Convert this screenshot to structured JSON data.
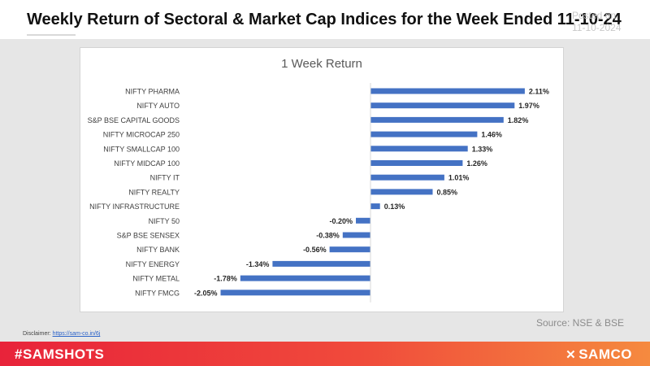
{
  "header": {
    "title": "Weekly Return of Sectoral & Market Cap Indices for the Week Ended 11-10-24",
    "posted_label": "Posted on",
    "posted_date": "11-10-2024"
  },
  "chart_data": {
    "type": "bar",
    "orientation": "horizontal",
    "title": "1 Week Return",
    "categories": [
      "NIFTY PHARMA",
      "NIFTY AUTO",
      "S&P BSE CAPITAL GOODS",
      "NIFTY MICROCAP 250",
      "NIFTY SMALLCAP 100",
      "NIFTY MIDCAP 100",
      "NIFTY IT",
      "NIFTY REALTY",
      "NIFTY INFRASTRUCTURE",
      "NIFTY 50",
      "S&P BSE SENSEX",
      "NIFTY BANK",
      "NIFTY ENERGY",
      "NIFTY METAL",
      "NIFTY FMCG"
    ],
    "values": [
      2.11,
      1.97,
      1.82,
      1.46,
      1.33,
      1.26,
      1.01,
      0.85,
      0.13,
      -0.2,
      -0.38,
      -0.56,
      -1.34,
      -1.78,
      -2.05
    ],
    "data_labels": [
      "2.11%",
      "1.97%",
      "1.82%",
      "1.46%",
      "1.33%",
      "1.26%",
      "1.01%",
      "0.85%",
      "0.13%",
      "-0.20%",
      "-0.38%",
      "-0.56%",
      "-1.34%",
      "-1.78%",
      "-2.05%"
    ],
    "xlim": [
      -2.05,
      2.11
    ],
    "bar_color": "#4472c4",
    "grid": false
  },
  "source": "Source: NSE & BSE",
  "disclaimer": {
    "label": "Disclaimer: ",
    "link": "https://sam-co.in/6j"
  },
  "footer": {
    "hashtag": "#SAMSHOTS",
    "brand": "SAMCO",
    "brand_icon": "samco-logo-icon"
  },
  "colors": {
    "footer_start": "#e8233a",
    "footer_end": "#f58a3f",
    "bar": "#4472c4"
  }
}
